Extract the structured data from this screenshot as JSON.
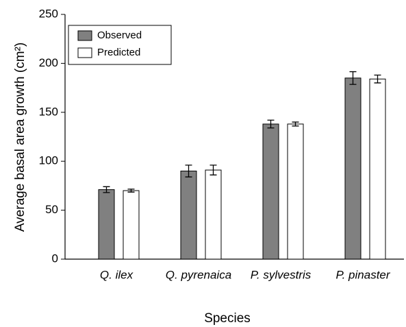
{
  "chart_data": {
    "type": "bar",
    "x_label": "Species",
    "y_label": "Average basal area growth (cm²)",
    "categories": [
      "Q. ilex",
      "Q. pyrenaica",
      "P. sylvestris",
      "P. pinaster"
    ],
    "series": [
      {
        "name": "Observed",
        "color": "#808080",
        "values": [
          71,
          90,
          138,
          185
        ],
        "errors": [
          3,
          6,
          4,
          6.5
        ]
      },
      {
        "name": "Predicted",
        "color": "#ffffff",
        "values": [
          70,
          91,
          138,
          184
        ],
        "errors": [
          1.5,
          5,
          2,
          4
        ]
      }
    ],
    "ylim": [
      0,
      250
    ],
    "yticks": [
      0,
      50,
      100,
      150,
      200,
      250
    ],
    "legend": "upper-left"
  }
}
